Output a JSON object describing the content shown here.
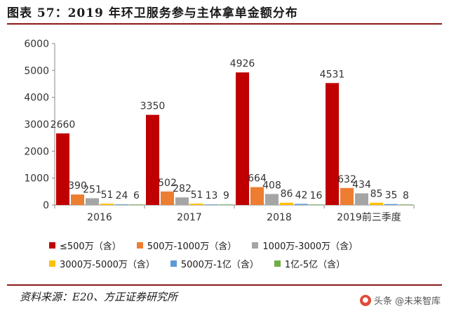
{
  "header": {
    "title": "图表 57：2019 年环卫服务参与主体拿单金额分布"
  },
  "footer": {
    "source": "资料来源：E20、方正证券研究所",
    "watermark": "头条 @未来智库"
  },
  "chart_data": {
    "type": "bar",
    "categories": [
      "2016",
      "2017",
      "2018",
      "2019前三季度"
    ],
    "series": [
      {
        "name": "≤500万（含）",
        "color": "#c00000",
        "values": [
          2660,
          3350,
          4926,
          4531
        ]
      },
      {
        "name": "500万-1000万（含）",
        "color": "#ed7d31",
        "values": [
          390,
          502,
          664,
          632
        ]
      },
      {
        "name": "1000万-3000万（含）",
        "color": "#a5a5a5",
        "values": [
          251,
          282,
          408,
          434
        ]
      },
      {
        "name": "3000万-5000万（含）",
        "color": "#ffc000",
        "values": [
          51,
          51,
          86,
          85
        ]
      },
      {
        "name": "5000万-1亿（含）",
        "color": "#5b9bd5",
        "values": [
          24,
          13,
          42,
          35
        ]
      },
      {
        "name": "1亿-5亿（含）",
        "color": "#70ad47",
        "values": [
          6,
          9,
          16,
          8
        ]
      }
    ],
    "ylim": [
      0,
      6000
    ],
    "yticks": [
      0,
      1000,
      2000,
      3000,
      4000,
      5000,
      6000
    ],
    "grid": false,
    "legend_position": "bottom"
  }
}
